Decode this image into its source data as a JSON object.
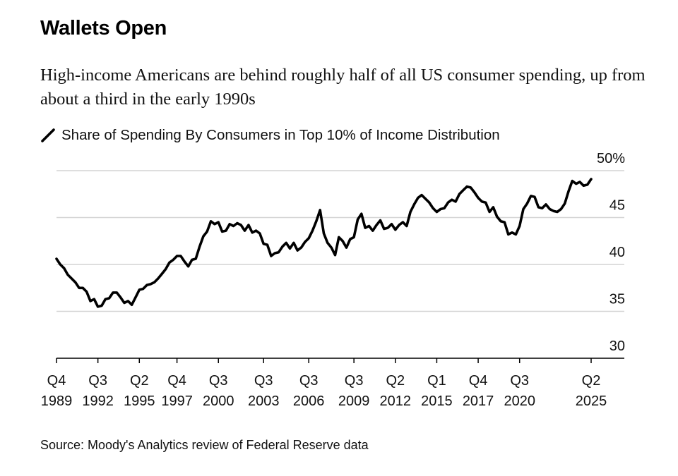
{
  "title": "Wallets Open",
  "subtitle": "High-income Americans are behind roughly half of all US consumer spending, up from about a third in the early 1990s",
  "legend_label": "Share of Spending By Consumers in Top 10% of Income Distribution",
  "source": "Source: Moody's Analytics review of Federal Reserve data",
  "colors": {
    "line": "#000000",
    "grid": "#d4d4d4",
    "axis": "#000000"
  },
  "chart_data": {
    "type": "line",
    "title": "Share of Spending By Consumers in Top 10% of Income Distribution",
    "xlabel": "",
    "ylabel": "",
    "x_range": [
      1989.75,
      2025.25
    ],
    "ylim": [
      30,
      50
    ],
    "y_ticks": [
      30,
      35,
      40,
      45,
      50
    ],
    "y_tick_labels": [
      "30",
      "35",
      "40",
      "45",
      "50%"
    ],
    "x_ticks": [
      {
        "pos": 1989.75,
        "top": "Q4",
        "bottom": "1989"
      },
      {
        "pos": 1992.5,
        "top": "Q3",
        "bottom": "1992"
      },
      {
        "pos": 1995.25,
        "top": "Q2",
        "bottom": "1995"
      },
      {
        "pos": 1997.75,
        "top": "Q4",
        "bottom": "1997"
      },
      {
        "pos": 2000.5,
        "top": "Q3",
        "bottom": "2000"
      },
      {
        "pos": 2003.5,
        "top": "Q3",
        "bottom": "2003"
      },
      {
        "pos": 2006.5,
        "top": "Q3",
        "bottom": "2006"
      },
      {
        "pos": 2009.5,
        "top": "Q3",
        "bottom": "2009"
      },
      {
        "pos": 2012.25,
        "top": "Q2",
        "bottom": "2012"
      },
      {
        "pos": 2015.0,
        "top": "Q1",
        "bottom": "2015"
      },
      {
        "pos": 2017.75,
        "top": "Q4",
        "bottom": "2017"
      },
      {
        "pos": 2020.5,
        "top": "Q3",
        "bottom": "2020"
      },
      {
        "pos": 2025.25,
        "top": "Q2",
        "bottom": "2025"
      }
    ],
    "grid": true,
    "series": [
      {
        "name": "Share of Spending By Consumers in Top 10% of Income Distribution",
        "x": [
          1989.75,
          1990.0,
          1990.25,
          1990.5,
          1990.75,
          1991.0,
          1991.25,
          1991.5,
          1991.75,
          1992.0,
          1992.25,
          1992.5,
          1992.75,
          1993.0,
          1993.25,
          1993.5,
          1993.75,
          1994.0,
          1994.25,
          1994.5,
          1994.75,
          1995.0,
          1995.25,
          1995.5,
          1995.75,
          1996.0,
          1996.25,
          1996.5,
          1996.75,
          1997.0,
          1997.25,
          1997.5,
          1997.75,
          1998.0,
          1998.25,
          1998.5,
          1998.75,
          1999.0,
          1999.25,
          1999.5,
          1999.75,
          2000.0,
          2000.25,
          2000.5,
          2000.75,
          2001.0,
          2001.25,
          2001.5,
          2001.75,
          2002.0,
          2002.25,
          2002.5,
          2002.75,
          2003.0,
          2003.25,
          2003.5,
          2003.75,
          2004.0,
          2004.25,
          2004.5,
          2004.75,
          2005.0,
          2005.25,
          2005.5,
          2005.75,
          2006.0,
          2006.25,
          2006.5,
          2006.75,
          2007.0,
          2007.25,
          2007.5,
          2007.75,
          2008.0,
          2008.25,
          2008.5,
          2008.75,
          2009.0,
          2009.25,
          2009.5,
          2009.75,
          2010.0,
          2010.25,
          2010.5,
          2010.75,
          2011.0,
          2011.25,
          2011.5,
          2011.75,
          2012.0,
          2012.25,
          2012.5,
          2012.75,
          2013.0,
          2013.25,
          2013.5,
          2013.75,
          2014.0,
          2014.25,
          2014.5,
          2014.75,
          2015.0,
          2015.25,
          2015.5,
          2015.75,
          2016.0,
          2016.25,
          2016.5,
          2016.75,
          2017.0,
          2017.25,
          2017.5,
          2017.75,
          2018.0,
          2018.25,
          2018.5,
          2018.75,
          2019.0,
          2019.25,
          2019.5,
          2019.75,
          2020.0,
          2020.25,
          2020.5,
          2020.75,
          2021.0,
          2021.25,
          2021.5,
          2021.75,
          2022.0,
          2022.25,
          2022.5,
          2022.75,
          2023.0,
          2023.25,
          2023.5,
          2023.75,
          2024.0,
          2024.25,
          2024.5,
          2024.75,
          2025.0,
          2025.25
        ],
        "values": [
          40.6,
          40.0,
          39.6,
          38.9,
          38.5,
          38.1,
          37.5,
          37.5,
          37.1,
          36.1,
          36.3,
          35.5,
          35.6,
          36.3,
          36.4,
          37.0,
          37.0,
          36.5,
          35.9,
          36.1,
          35.7,
          36.5,
          37.3,
          37.4,
          37.8,
          37.9,
          38.1,
          38.5,
          39.0,
          39.5,
          40.2,
          40.5,
          40.9,
          40.9,
          40.3,
          39.8,
          40.5,
          40.6,
          41.9,
          43.0,
          43.5,
          44.6,
          44.3,
          44.5,
          43.5,
          43.6,
          44.3,
          44.1,
          44.4,
          44.2,
          43.6,
          44.2,
          43.4,
          43.6,
          43.3,
          42.2,
          42.1,
          40.9,
          41.2,
          41.3,
          41.9,
          42.3,
          41.7,
          42.3,
          41.5,
          41.8,
          42.4,
          42.8,
          43.6,
          44.6,
          45.8,
          43.3,
          42.3,
          41.8,
          41.0,
          42.9,
          42.5,
          41.8,
          42.7,
          42.9,
          44.8,
          45.4,
          43.9,
          44.1,
          43.6,
          44.2,
          44.7,
          43.8,
          43.9,
          44.3,
          43.7,
          44.2,
          44.5,
          44.1,
          45.6,
          46.4,
          47.1,
          47.4,
          47.0,
          46.6,
          46.0,
          45.6,
          45.9,
          46.0,
          46.6,
          46.9,
          46.7,
          47.5,
          47.9,
          48.3,
          48.2,
          47.7,
          47.1,
          46.7,
          46.6,
          45.6,
          46.1,
          45.1,
          44.6,
          44.5,
          43.2,
          43.4,
          43.2,
          44.1,
          45.9,
          46.5,
          47.3,
          47.2,
          46.1,
          46.0,
          46.4,
          45.9,
          45.7,
          45.6,
          45.9,
          46.5,
          47.8,
          48.9,
          48.6,
          48.8,
          48.4,
          48.5,
          49.1
        ]
      }
    ]
  }
}
